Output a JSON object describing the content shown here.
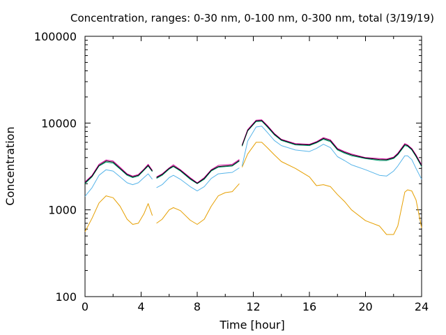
{
  "chart_data": {
    "type": "line",
    "title": "Concentration, ranges: 0-30 nm, 0-100 nm, 0-300 nm, total (3/19/19)",
    "xlabel": "Time [hour]",
    "ylabel": "Concentration",
    "xlim": [
      0,
      24
    ],
    "ylim": [
      100,
      100000
    ],
    "yscale": "log",
    "x_ticks": [
      "0",
      "4",
      "8",
      "12",
      "16",
      "20",
      "24"
    ],
    "y_ticks": [
      "100",
      "1000",
      "10000",
      "100000"
    ],
    "grid": false,
    "legend": "none",
    "gaps_at_hours": [
      4.8,
      5.1,
      11.0,
      11.2
    ],
    "series": [
      {
        "color": "#e69f00",
        "points": [
          [
            0,
            560
          ],
          [
            0.5,
            800
          ],
          [
            1,
            1200
          ],
          [
            1.5,
            1450
          ],
          [
            2,
            1380
          ],
          [
            2.5,
            1100
          ],
          [
            3,
            780
          ],
          [
            3.4,
            680
          ],
          [
            3.8,
            700
          ],
          [
            4.2,
            900
          ],
          [
            4.5,
            1180
          ],
          [
            4.8,
            860
          ],
          [
            5.1,
            700
          ],
          [
            5.5,
            780
          ],
          [
            6,
            1000
          ],
          [
            6.3,
            1060
          ],
          [
            6.8,
            980
          ],
          [
            7.5,
            760
          ],
          [
            8,
            680
          ],
          [
            8.5,
            780
          ],
          [
            9,
            1100
          ],
          [
            9.5,
            1450
          ],
          [
            10,
            1580
          ],
          [
            10.5,
            1620
          ],
          [
            11,
            2000
          ],
          [
            11.2,
            3100
          ],
          [
            11.6,
            4400
          ],
          [
            12.2,
            6000
          ],
          [
            12.6,
            6000
          ],
          [
            13,
            5200
          ],
          [
            13.5,
            4300
          ],
          [
            14,
            3600
          ],
          [
            15,
            3000
          ],
          [
            16,
            2400
          ],
          [
            16.5,
            1900
          ],
          [
            17,
            1950
          ],
          [
            17.5,
            1850
          ],
          [
            18,
            1500
          ],
          [
            18.5,
            1250
          ],
          [
            19,
            1000
          ],
          [
            20,
            750
          ],
          [
            21,
            650
          ],
          [
            21.5,
            520
          ],
          [
            22,
            520
          ],
          [
            22.3,
            650
          ],
          [
            22.8,
            1600
          ],
          [
            23,
            1700
          ],
          [
            23.3,
            1650
          ],
          [
            23.6,
            1300
          ],
          [
            24,
            620
          ]
        ]
      },
      {
        "color": "#56b4e9",
        "points": [
          [
            0,
            1430
          ],
          [
            0.5,
            1800
          ],
          [
            1,
            2500
          ],
          [
            1.5,
            2900
          ],
          [
            2,
            2800
          ],
          [
            2.5,
            2400
          ],
          [
            3,
            2050
          ],
          [
            3.4,
            1950
          ],
          [
            3.8,
            2050
          ],
          [
            4.2,
            2350
          ],
          [
            4.5,
            2600
          ],
          [
            4.8,
            2250
          ],
          [
            5.1,
            1800
          ],
          [
            5.5,
            1950
          ],
          [
            6,
            2350
          ],
          [
            6.3,
            2500
          ],
          [
            6.8,
            2250
          ],
          [
            7.5,
            1850
          ],
          [
            8,
            1650
          ],
          [
            8.5,
            1850
          ],
          [
            9,
            2300
          ],
          [
            9.5,
            2600
          ],
          [
            10,
            2650
          ],
          [
            10.5,
            2700
          ],
          [
            11,
            3050
          ],
          [
            11.2,
            3200
          ],
          [
            11.6,
            6200
          ],
          [
            12.2,
            9000
          ],
          [
            12.6,
            9200
          ],
          [
            13,
            7800
          ],
          [
            13.5,
            6300
          ],
          [
            14,
            5500
          ],
          [
            15,
            4900
          ],
          [
            16,
            4700
          ],
          [
            16.5,
            5100
          ],
          [
            17,
            5700
          ],
          [
            17.5,
            5200
          ],
          [
            18,
            4100
          ],
          [
            18.5,
            3700
          ],
          [
            19,
            3300
          ],
          [
            20,
            2900
          ],
          [
            21,
            2500
          ],
          [
            21.5,
            2450
          ],
          [
            22,
            2800
          ],
          [
            22.3,
            3200
          ],
          [
            22.8,
            4200
          ],
          [
            23,
            4200
          ],
          [
            23.3,
            3800
          ],
          [
            23.6,
            3000
          ],
          [
            24,
            2250
          ]
        ]
      },
      {
        "color": "#009e73",
        "points": [
          [
            0,
            2000
          ],
          [
            0.5,
            2400
          ],
          [
            1,
            3200
          ],
          [
            1.5,
            3550
          ],
          [
            2,
            3450
          ],
          [
            2.5,
            2950
          ],
          [
            3,
            2500
          ],
          [
            3.4,
            2350
          ],
          [
            3.8,
            2450
          ],
          [
            4.2,
            2850
          ],
          [
            4.5,
            3200
          ],
          [
            4.8,
            2750
          ],
          [
            5.1,
            2300
          ],
          [
            5.5,
            2500
          ],
          [
            6,
            2950
          ],
          [
            6.3,
            3150
          ],
          [
            6.8,
            2800
          ],
          [
            7.5,
            2250
          ],
          [
            8,
            2000
          ],
          [
            8.5,
            2250
          ],
          [
            9,
            2800
          ],
          [
            9.5,
            3100
          ],
          [
            10,
            3150
          ],
          [
            10.5,
            3200
          ],
          [
            11,
            3650
          ],
          [
            11.2,
            5400
          ],
          [
            11.6,
            8100
          ],
          [
            12.2,
            10400
          ],
          [
            12.6,
            10500
          ],
          [
            13,
            9000
          ],
          [
            13.5,
            7300
          ],
          [
            14,
            6300
          ],
          [
            15,
            5600
          ],
          [
            16,
            5500
          ],
          [
            16.5,
            5900
          ],
          [
            17,
            6500
          ],
          [
            17.5,
            6100
          ],
          [
            18,
            4900
          ],
          [
            18.5,
            4500
          ],
          [
            19,
            4200
          ],
          [
            20,
            3900
          ],
          [
            21,
            3700
          ],
          [
            21.5,
            3700
          ],
          [
            22,
            3900
          ],
          [
            22.3,
            4300
          ],
          [
            22.8,
            5500
          ],
          [
            23,
            5400
          ],
          [
            23.3,
            4900
          ],
          [
            23.6,
            4100
          ],
          [
            24,
            3150
          ]
        ]
      },
      {
        "color": "#cc0099",
        "points": [
          [
            0,
            2100
          ],
          [
            0.5,
            2500
          ],
          [
            1,
            3350
          ],
          [
            1.5,
            3750
          ],
          [
            2,
            3650
          ],
          [
            2.5,
            3100
          ],
          [
            3,
            2600
          ],
          [
            3.4,
            2450
          ],
          [
            3.8,
            2550
          ],
          [
            4.2,
            2950
          ],
          [
            4.5,
            3350
          ],
          [
            4.8,
            2850
          ],
          [
            5.1,
            2400
          ],
          [
            5.5,
            2600
          ],
          [
            6,
            3050
          ],
          [
            6.3,
            3300
          ],
          [
            6.8,
            2900
          ],
          [
            7.5,
            2350
          ],
          [
            8,
            2050
          ],
          [
            8.5,
            2350
          ],
          [
            9,
            2900
          ],
          [
            9.5,
            3250
          ],
          [
            10,
            3300
          ],
          [
            10.5,
            3350
          ],
          [
            11,
            3800
          ],
          [
            11.2,
            5600
          ],
          [
            11.6,
            8400
          ],
          [
            12.2,
            10800
          ],
          [
            12.6,
            10900
          ],
          [
            13,
            9400
          ],
          [
            13.5,
            7600
          ],
          [
            14,
            6500
          ],
          [
            15,
            5800
          ],
          [
            16,
            5700
          ],
          [
            16.5,
            6100
          ],
          [
            17,
            6800
          ],
          [
            17.5,
            6400
          ],
          [
            18,
            5100
          ],
          [
            18.5,
            4700
          ],
          [
            19,
            4400
          ],
          [
            20,
            4000
          ],
          [
            21,
            3900
          ],
          [
            21.5,
            3850
          ],
          [
            22,
            4050
          ],
          [
            22.3,
            4500
          ],
          [
            22.8,
            5800
          ],
          [
            23,
            5600
          ],
          [
            23.3,
            5100
          ],
          [
            23.6,
            4300
          ],
          [
            24,
            3300
          ]
        ]
      },
      {
        "color": "#000000",
        "points": [
          [
            0,
            2050
          ],
          [
            0.5,
            2450
          ],
          [
            1,
            3250
          ],
          [
            1.5,
            3650
          ],
          [
            2,
            3550
          ],
          [
            2.5,
            3000
          ],
          [
            3,
            2550
          ],
          [
            3.4,
            2400
          ],
          [
            3.8,
            2500
          ],
          [
            4.2,
            2900
          ],
          [
            4.5,
            3250
          ],
          [
            4.8,
            2800
          ],
          [
            5.1,
            2350
          ],
          [
            5.5,
            2550
          ],
          [
            6,
            3000
          ],
          [
            6.3,
            3200
          ],
          [
            6.8,
            2850
          ],
          [
            7.5,
            2300
          ],
          [
            8,
            2020
          ],
          [
            8.5,
            2300
          ],
          [
            9,
            2850
          ],
          [
            9.5,
            3150
          ],
          [
            10,
            3200
          ],
          [
            10.5,
            3250
          ],
          [
            11,
            3700
          ],
          [
            11.2,
            5500
          ],
          [
            11.6,
            8200
          ],
          [
            12.2,
            10600
          ],
          [
            12.6,
            10700
          ],
          [
            13,
            9200
          ],
          [
            13.5,
            7450
          ],
          [
            14,
            6400
          ],
          [
            15,
            5700
          ],
          [
            16,
            5600
          ],
          [
            16.5,
            6000
          ],
          [
            17,
            6650
          ],
          [
            17.5,
            6250
          ],
          [
            18,
            5000
          ],
          [
            18.5,
            4600
          ],
          [
            19,
            4300
          ],
          [
            20,
            3950
          ],
          [
            21,
            3800
          ],
          [
            21.5,
            3780
          ],
          [
            22,
            3980
          ],
          [
            22.3,
            4400
          ],
          [
            22.8,
            5650
          ],
          [
            23,
            5500
          ],
          [
            23.3,
            5000
          ],
          [
            23.6,
            4200
          ],
          [
            24,
            3220
          ]
        ]
      }
    ]
  }
}
